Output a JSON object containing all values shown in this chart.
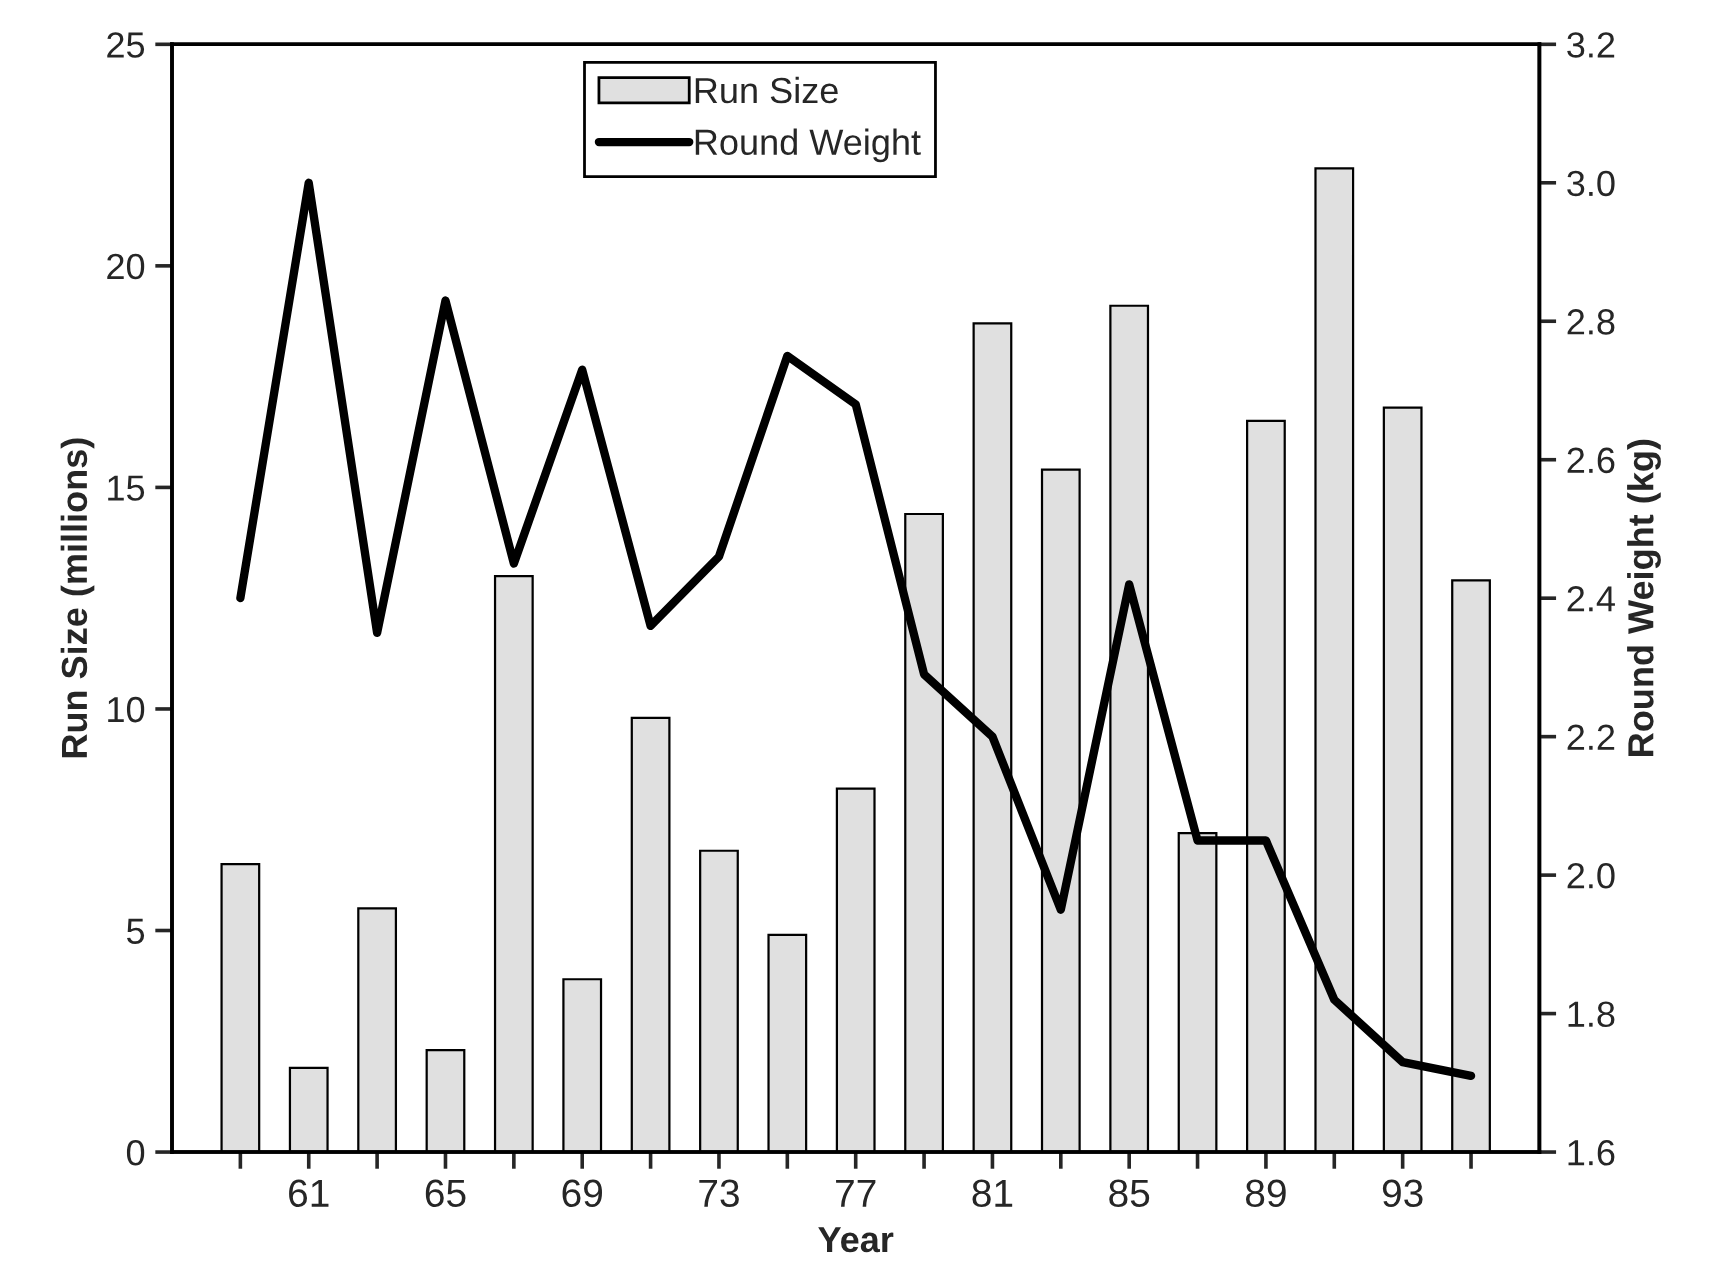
{
  "chart_data": {
    "type": "bar",
    "xlabel": "Year",
    "ylabel": "Run Size (millions)",
    "y2label": "Round Weight (kg)",
    "categories": [
      null,
      "61",
      null,
      "65",
      null,
      "69",
      null,
      "73",
      null,
      "77",
      null,
      "81",
      null,
      "85",
      null,
      "89",
      null,
      "93",
      null
    ],
    "series": [
      {
        "name": "Run Size",
        "color": "#e0e0e0",
        "values": [
          6.5,
          1.9,
          5.5,
          2.3,
          13.0,
          3.9,
          9.8,
          6.8,
          4.9,
          8.2,
          14.4,
          18.7,
          15.4,
          19.1,
          7.2,
          16.5,
          22.2,
          16.8,
          12.9
        ]
      },
      {
        "name": "Round Weight",
        "type": "line",
        "axis": "y2",
        "color": "#000000",
        "values": [
          2.4,
          3.0,
          2.35,
          2.83,
          2.45,
          2.73,
          2.36,
          2.46,
          2.75,
          2.68,
          2.29,
          2.2,
          1.95,
          2.42,
          2.05,
          2.05,
          1.82,
          1.73,
          1.71
        ]
      }
    ],
    "ylim": [
      0,
      25
    ],
    "yticks": [
      0,
      5,
      10,
      15,
      20,
      25
    ],
    "y2lim": [
      1.6,
      3.2
    ],
    "y2ticks": [
      {
        "value": 1.6,
        "label": "1.6"
      },
      {
        "value": 1.8,
        "label": "1.8"
      },
      {
        "value": 2.0,
        "label": "2.0"
      },
      {
        "value": 2.2,
        "label": "2.2"
      },
      {
        "value": 2.4,
        "label": "2.4"
      },
      {
        "value": 2.6,
        "label": "2.6"
      },
      {
        "value": 2.8,
        "label": "2.8"
      },
      {
        "value": 3.0,
        "label": "3.0"
      },
      {
        "value": 3.2,
        "label": "3.2"
      }
    ],
    "legend": "top",
    "grid": false,
    "marker": "none",
    "line_style": "solid"
  }
}
